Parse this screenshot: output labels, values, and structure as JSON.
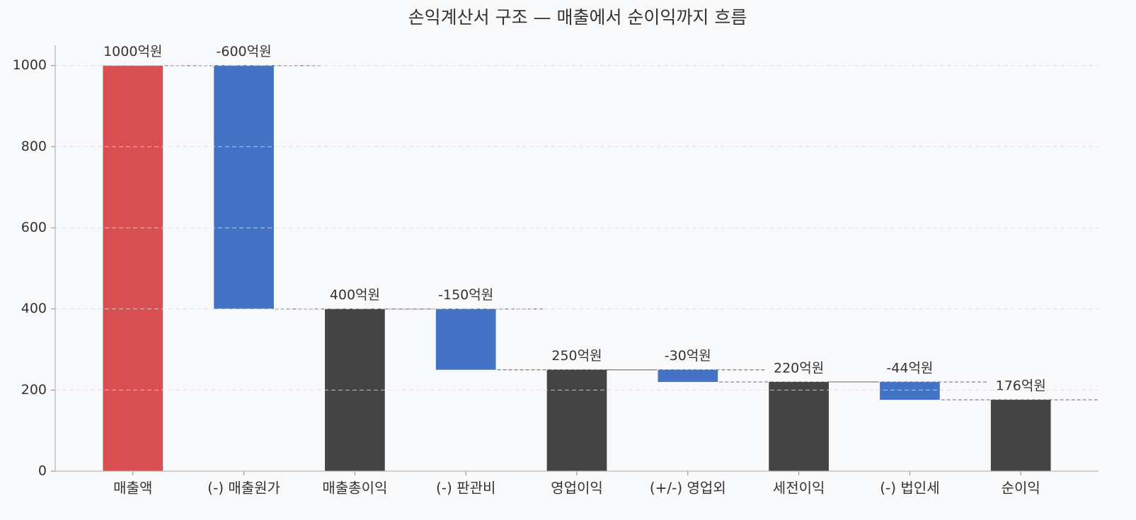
{
  "chart_data": {
    "type": "waterfall",
    "title": "손익계산서 구조 — 매출에서 순이익까지 흐름",
    "categories": [
      "매출액",
      "(-) 매출원가",
      "매출총이익",
      "(-) 판관비",
      "영업이익",
      "(+/-) 영업외",
      "세전이익",
      "(-) 법인세",
      "순이익"
    ],
    "values": [
      1000,
      -600,
      400,
      -150,
      250,
      -30,
      220,
      -44,
      176
    ],
    "value_labels": [
      "1000억원",
      "-600억원",
      "400억원",
      "-150억원",
      "250억원",
      "-30억원",
      "220억원",
      "-44억원",
      "176억원"
    ],
    "colors": [
      "#d95052",
      "#4472c4",
      "#444444",
      "#4472c4",
      "#444444",
      "#4472c4",
      "#444444",
      "#4472c4",
      "#444444"
    ],
    "ylim": [
      0,
      1050
    ],
    "yticks": [
      0,
      200,
      400,
      600,
      800,
      1000
    ],
    "grid": true
  }
}
